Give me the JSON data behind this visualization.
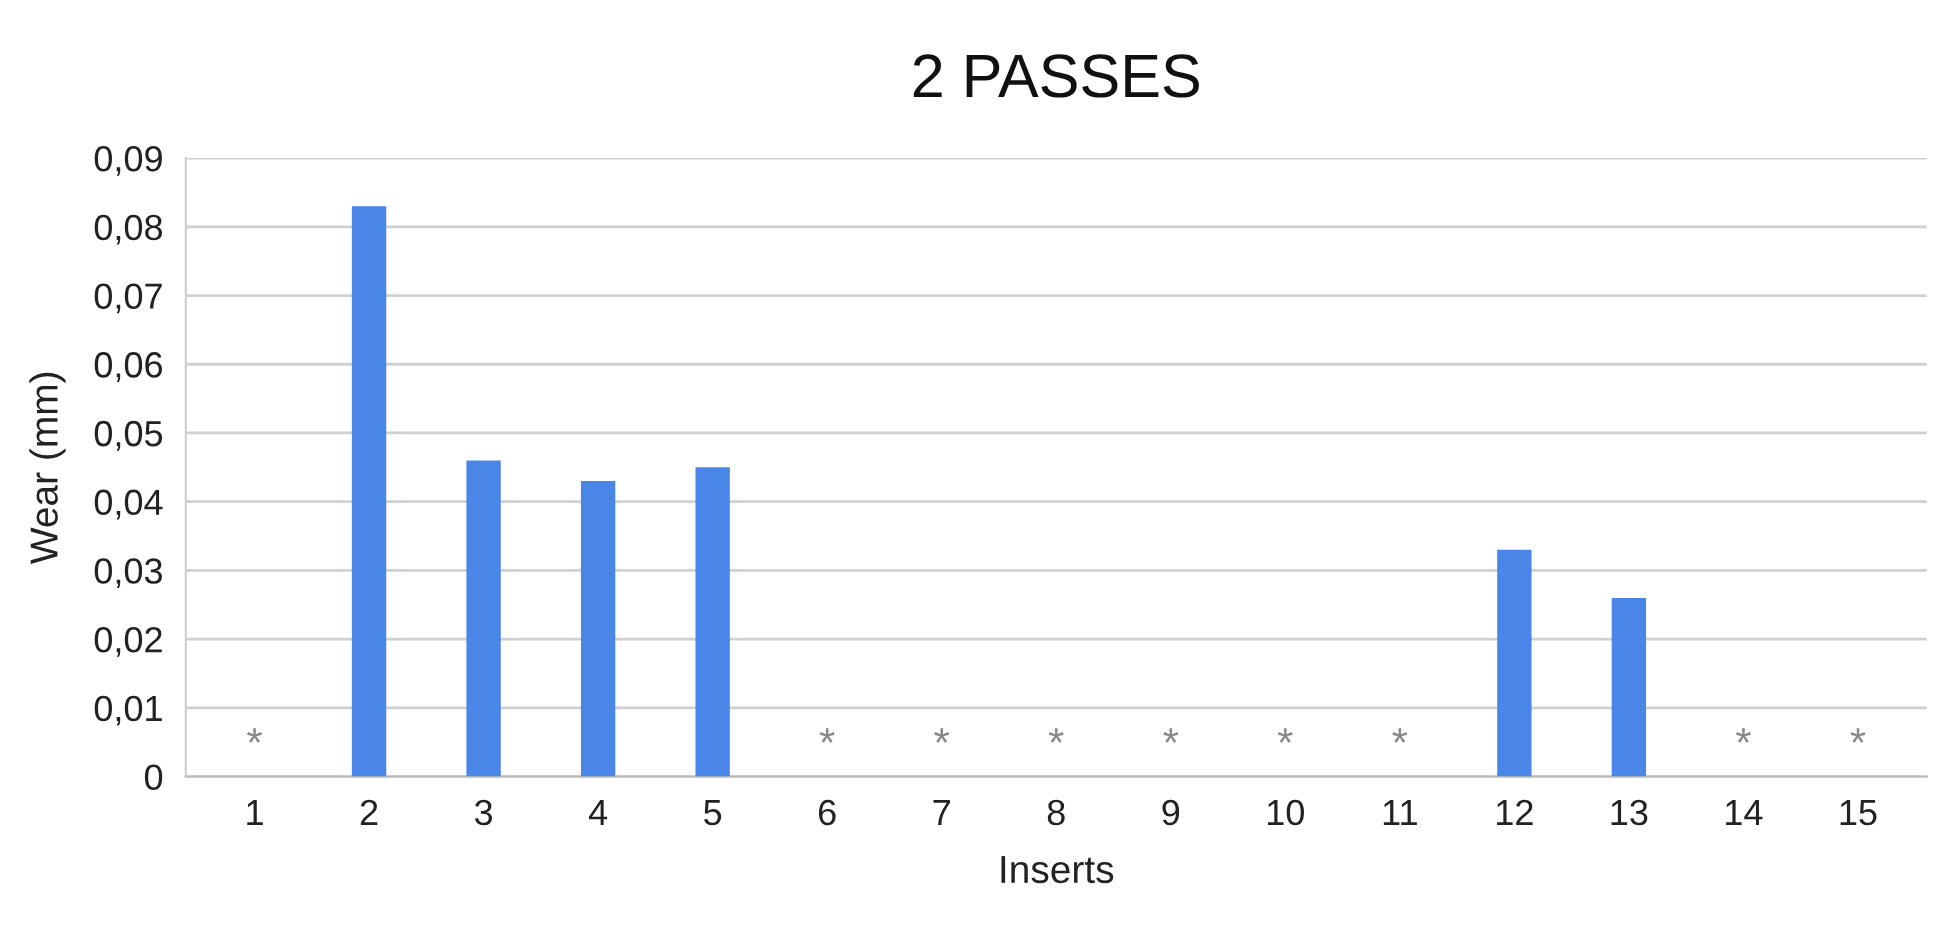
{
  "chart_data": {
    "type": "bar",
    "title": "2 PASSES",
    "xlabel": "Inserts",
    "ylabel": "Wear (mm)",
    "categories": [
      "1",
      "2",
      "3",
      "4",
      "5",
      "6",
      "7",
      "8",
      "9",
      "10",
      "11",
      "12",
      "13",
      "14",
      "15"
    ],
    "series": [
      {
        "color": "#4a86e8",
        "values": [
          null,
          0.083,
          0.046,
          0.043,
          0.045,
          null,
          null,
          null,
          null,
          null,
          null,
          0.033,
          0.026,
          null,
          null
        ],
        "value_labels": [
          "*",
          null,
          null,
          null,
          null,
          "*",
          "*",
          "*",
          "*",
          "*",
          "*",
          null,
          null,
          "*",
          "*"
        ]
      }
    ],
    "ylim": [
      0,
      0.09
    ],
    "yticks": [
      0,
      {
        "value": 0.01,
        "label": "0,01"
      },
      {
        "value": 0.02,
        "label": "0,02"
      },
      {
        "value": 0.03,
        "label": "0,03"
      },
      {
        "value": 0.04,
        "label": "0,04"
      },
      {
        "value": 0.05,
        "label": "0,05"
      },
      {
        "value": 0.06,
        "label": "0,06"
      },
      {
        "value": 0.07,
        "label": "0,07"
      },
      {
        "value": 0.08,
        "label": "0,08"
      },
      {
        "value": 0.09,
        "label": "0,09"
      }
    ],
    "grid": "y"
  }
}
